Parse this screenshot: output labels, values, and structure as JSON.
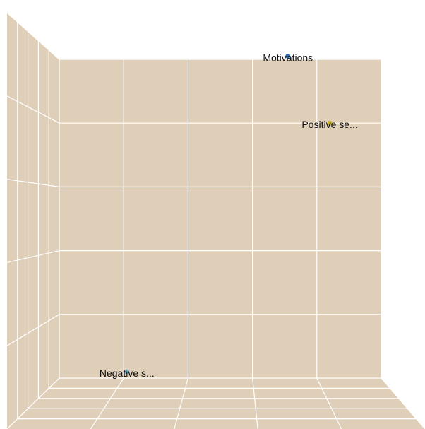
{
  "chart_data": {
    "type": "scatter",
    "title": "",
    "xlabel": "",
    "ylabel": "",
    "grid": true,
    "floor_color": "#e0cfb8",
    "grid_color": "#ffffff",
    "points": [
      {
        "label": "Motivations",
        "x": 3.55,
        "y": 5.05,
        "color": "#2f6fb5"
      },
      {
        "label": "Positive se...",
        "x": 4.2,
        "y": 4.0,
        "color": "#c9b02a"
      },
      {
        "label": "Negative s...",
        "x": 1.05,
        "y": 0.1,
        "color": "#7fb7c9"
      }
    ],
    "xlim": [
      0,
      5
    ],
    "ylim": [
      0,
      5
    ]
  }
}
